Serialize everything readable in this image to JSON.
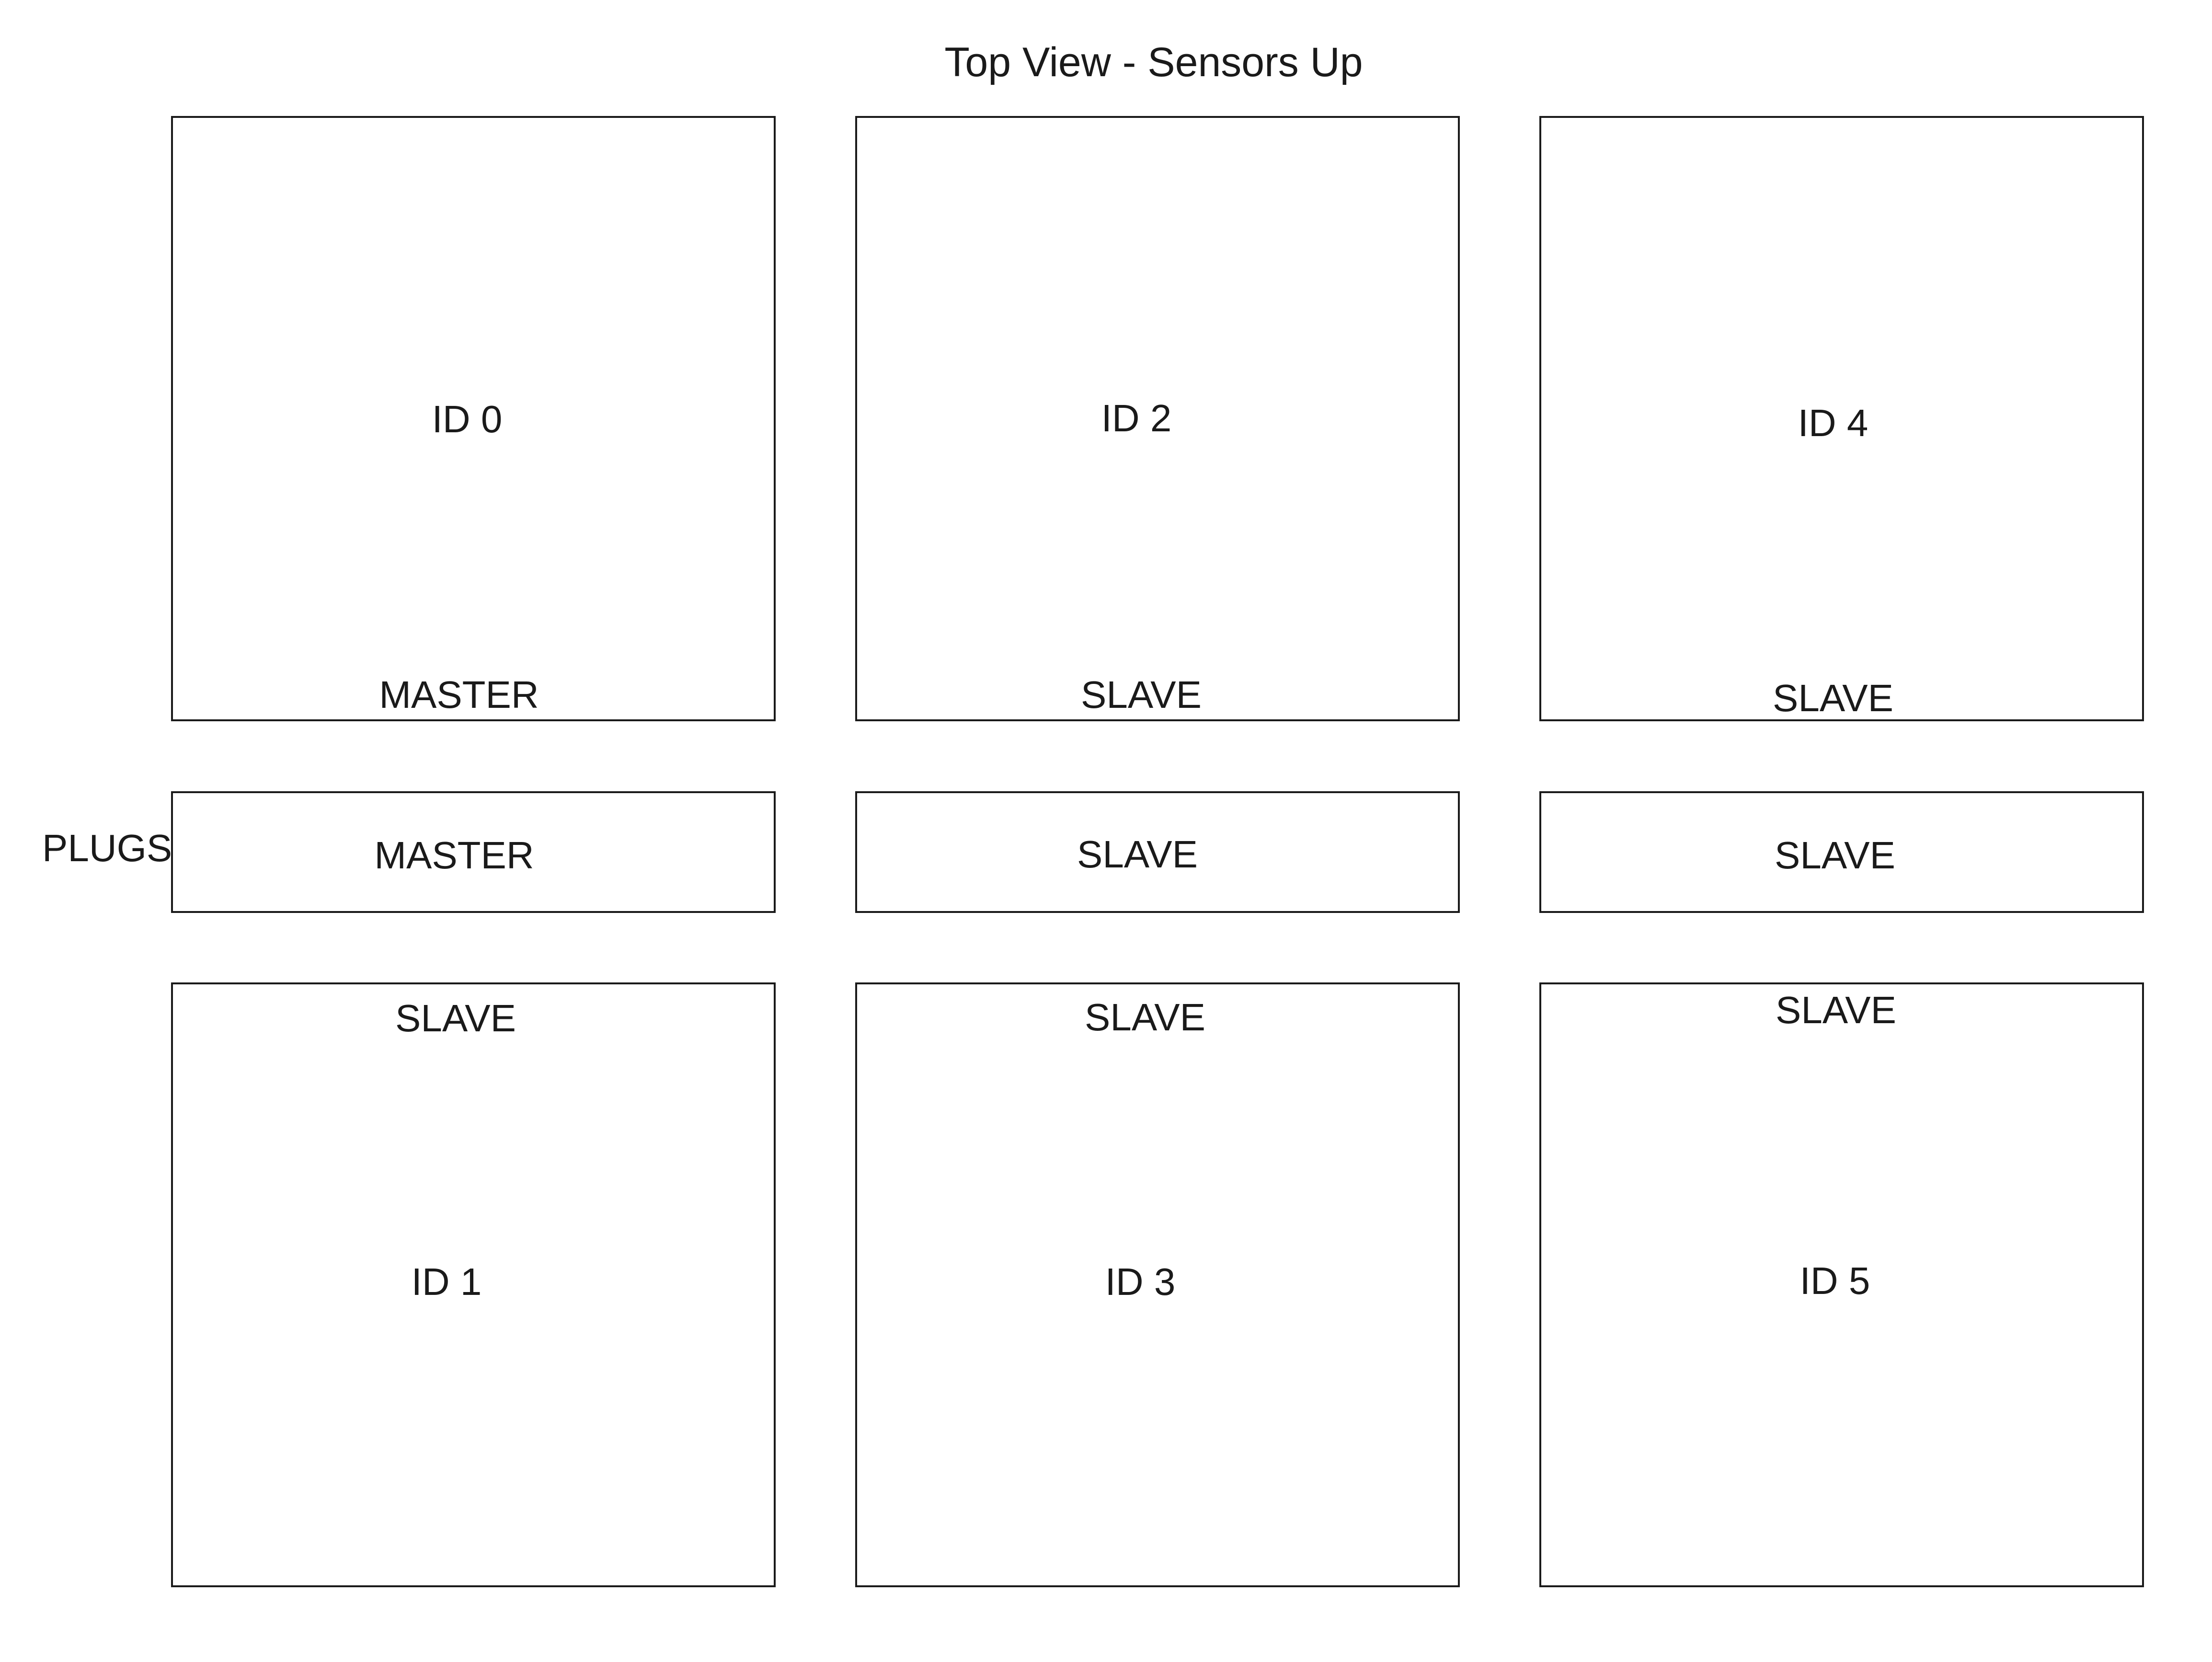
{
  "title": "Top View - Sensors Up",
  "plugs_label": "PLUGS",
  "top_row": [
    {
      "id_label": "ID 0",
      "role": "MASTER"
    },
    {
      "id_label": "ID 2",
      "role": "SLAVE"
    },
    {
      "id_label": "ID 4",
      "role": "SLAVE"
    }
  ],
  "plugs": [
    {
      "role": "MASTER"
    },
    {
      "role": "SLAVE"
    },
    {
      "role": "SLAVE"
    }
  ],
  "bottom_row": [
    {
      "id_label": "ID 1",
      "role": "SLAVE"
    },
    {
      "id_label": "ID 3",
      "role": "SLAVE"
    },
    {
      "id_label": "ID 5",
      "role": "SLAVE"
    }
  ]
}
